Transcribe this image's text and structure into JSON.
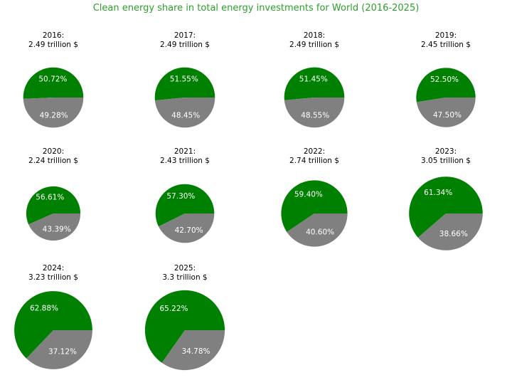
{
  "figure": {
    "title_color": "#2ca02c",
    "background": "#ffffff"
  },
  "colors": {
    "clean": "#008000",
    "other": "#808080",
    "pct_text": "#ffffff",
    "subtitle_text": "#000000"
  },
  "chart_data": {
    "type": "pie",
    "title": "Clean energy share in total energy investments for World (2016-2025)",
    "layout": {
      "grid_columns": 4,
      "grid_rows": 3,
      "legend": "none",
      "pie_radius_proportional_to_total": true,
      "pct_label_distance": 0.6
    },
    "pies": [
      {
        "year_label": "2016:",
        "total_label": "2.49 trillion $",
        "total_trillion": 2.49,
        "clean_pct": 50.72,
        "other_pct": 49.28,
        "clean_label": "50.72%",
        "other_label": "49.28%"
      },
      {
        "year_label": "2017:",
        "total_label": "2.49 trillion $",
        "total_trillion": 2.49,
        "clean_pct": 51.55,
        "other_pct": 48.45,
        "clean_label": "51.55%",
        "other_label": "48.45%"
      },
      {
        "year_label": "2018:",
        "total_label": "2.49 trillion $",
        "total_trillion": 2.49,
        "clean_pct": 51.45,
        "other_pct": 48.55,
        "clean_label": "51.45%",
        "other_label": "48.55%"
      },
      {
        "year_label": "2019:",
        "total_label": "2.45 trillion $",
        "total_trillion": 2.45,
        "clean_pct": 52.5,
        "other_pct": 47.5,
        "clean_label": "52.50%",
        "other_label": "47.50%"
      },
      {
        "year_label": "2020:",
        "total_label": "2.24 trillion $",
        "total_trillion": 2.24,
        "clean_pct": 56.61,
        "other_pct": 43.39,
        "clean_label": "56.61%",
        "other_label": "43.39%"
      },
      {
        "year_label": "2021:",
        "total_label": "2.43 trillion $",
        "total_trillion": 2.43,
        "clean_pct": 57.3,
        "other_pct": 42.7,
        "clean_label": "57.30%",
        "other_label": "42.70%"
      },
      {
        "year_label": "2022:",
        "total_label": "2.74 trillion $",
        "total_trillion": 2.74,
        "clean_pct": 59.4,
        "other_pct": 40.6,
        "clean_label": "59.40%",
        "other_label": "40.60%"
      },
      {
        "year_label": "2023:",
        "total_label": "3.05 trillion $",
        "total_trillion": 3.05,
        "clean_pct": 61.34,
        "other_pct": 38.66,
        "clean_label": "61.34%",
        "other_label": "38.66%"
      },
      {
        "year_label": "2024:",
        "total_label": "3.23 trillion $",
        "total_trillion": 3.23,
        "clean_pct": 62.88,
        "other_pct": 37.12,
        "clean_label": "62.88%",
        "other_label": "37.12%"
      },
      {
        "year_label": "2025:",
        "total_label": "3.3 trillion $",
        "total_trillion": 3.3,
        "clean_pct": 65.22,
        "other_pct": 34.78,
        "clean_label": "65.22%",
        "other_label": "34.78%"
      }
    ]
  }
}
